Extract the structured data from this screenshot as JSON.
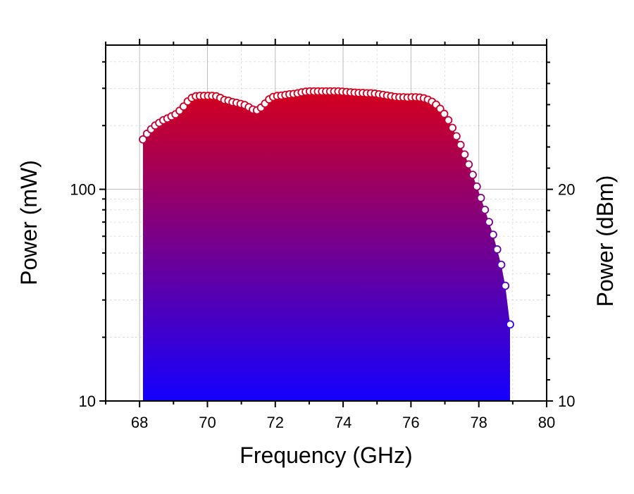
{
  "chart_data": {
    "type": "area",
    "title": "",
    "xlabel": "Frequency (GHz)",
    "ylabel": "Power (mW)",
    "y2label": "Power (dBm)",
    "xlim": [
      67,
      80
    ],
    "ylim": [
      10,
      480
    ],
    "yscale": "log",
    "grid": true,
    "x_ticks": [
      "68",
      "70",
      "72",
      "74",
      "76",
      "78",
      "80"
    ],
    "y_ticks": [
      "10",
      "100"
    ],
    "y2_ticks": [
      "10",
      "20"
    ],
    "fill_gradient": {
      "top": "#d4001e",
      "bottom": "#1400ff"
    },
    "marker": {
      "fill": "#ffffff",
      "edge_top": "#d4001e",
      "edge_bottom": "#2a00ff"
    },
    "series": [
      {
        "x": [
          68.1,
          68.22,
          68.34,
          68.46,
          68.58,
          68.7,
          68.82,
          68.94,
          69.06,
          69.18,
          69.3,
          69.42,
          69.54,
          69.66,
          69.78,
          69.9,
          70.02,
          70.14,
          70.26,
          70.38,
          70.5,
          70.62,
          70.74,
          70.86,
          70.98,
          71.1,
          71.22,
          71.34,
          71.46,
          71.58,
          71.7,
          71.82,
          71.94,
          72.06,
          72.18,
          72.3,
          72.42,
          72.54,
          72.66,
          72.78,
          72.9,
          73.02,
          73.14,
          73.26,
          73.38,
          73.5,
          73.62,
          73.74,
          73.86,
          73.98,
          74.1,
          74.22,
          74.34,
          74.46,
          74.58,
          74.7,
          74.82,
          74.94,
          75.06,
          75.18,
          75.3,
          75.42,
          75.54,
          75.66,
          75.78,
          75.9,
          76.02,
          76.14,
          76.26,
          76.38,
          76.5,
          76.62,
          76.74,
          76.86,
          76.98,
          77.1,
          77.22,
          77.34,
          77.46,
          77.58,
          77.7,
          77.82,
          77.94,
          78.06,
          78.18,
          78.3,
          78.42,
          78.54,
          78.66,
          78.78,
          78.92
        ],
        "y": [
          172,
          183,
          192,
          200,
          206,
          212,
          216,
          221,
          226,
          235,
          246,
          260,
          270,
          275,
          276,
          276,
          276,
          276,
          275,
          270,
          264,
          262,
          258,
          256,
          253,
          250,
          244,
          238,
          236,
          243,
          254,
          266,
          273,
          276,
          277,
          279,
          281,
          282,
          284,
          287,
          289,
          290,
          290,
          290,
          290,
          290,
          290,
          290,
          290,
          289,
          288,
          287,
          286,
          285,
          285,
          284,
          284,
          283,
          281,
          279,
          277,
          275,
          273,
          272,
          272,
          271,
          272,
          272,
          271,
          269,
          265,
          259,
          251,
          240,
          227,
          212,
          195,
          178,
          162,
          146,
          131,
          117,
          103,
          91,
          80,
          70,
          61,
          52,
          44,
          35,
          23
        ]
      }
    ]
  }
}
